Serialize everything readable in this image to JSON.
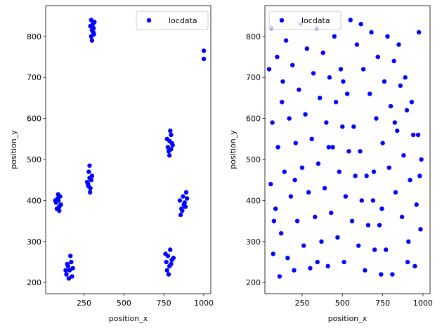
{
  "chart_data": [
    {
      "type": "scatter",
      "xlabel": "position_x",
      "ylabel": "position_y",
      "xlim": [
        10,
        1044
      ],
      "ylim": [
        173,
        875
      ],
      "xticks": [
        250,
        500,
        750,
        1000
      ],
      "yticks": [
        200,
        300,
        400,
        500,
        600,
        700,
        800
      ],
      "legend": "upper right",
      "series": [
        {
          "name": "locdata",
          "color": "#0000ff",
          "x": [
            295,
            300,
            305,
            310,
            290,
            315,
            300,
            308,
            295,
            312,
            75,
            85,
            95,
            100,
            80,
            90,
            105,
            70,
            95,
            88,
            140,
            150,
            160,
            170,
            155,
            180,
            145,
            165,
            175,
            135,
            275,
            285,
            290,
            280,
            295,
            270,
            285,
            300,
            288,
            278,
            775,
            785,
            795,
            780,
            800,
            790,
            770,
            805,
            785,
            795,
            765,
            775,
            785,
            790,
            770,
            800,
            780,
            810,
            760,
            795,
            850,
            860,
            870,
            880,
            890,
            855,
            875,
            895,
            865,
            885,
            1000,
            1000
          ],
          "y": [
            800,
            815,
            830,
            820,
            825,
            835,
            790,
            810,
            840,
            805,
            395,
            405,
            385,
            410,
            380,
            400,
            390,
            400,
            375,
            415,
            220,
            240,
            230,
            250,
            210,
            235,
            245,
            265,
            215,
            230,
            440,
            455,
            430,
            470,
            450,
            445,
            485,
            460,
            420,
            435,
            530,
            545,
            560,
            520,
            540,
            570,
            550,
            535,
            510,
            525,
            250,
            265,
            240,
            280,
            230,
            255,
            220,
            260,
            270,
            245,
            400,
            380,
            410,
            395,
            420,
            365,
            390,
            405,
            375,
            385,
            765,
            745
          ]
        }
      ]
    },
    {
      "type": "scatter",
      "xlabel": "position_x",
      "ylabel": "position_y",
      "xlim": [
        19,
        1044
      ],
      "ylim": [
        173,
        875
      ],
      "xticks": [
        250,
        500,
        750,
        1000
      ],
      "yticks": [
        200,
        300,
        400,
        500,
        600,
        700,
        800
      ],
      "legend": "upper left",
      "series": [
        {
          "name": "locdata",
          "color": "#0000ff",
          "x": [
            60,
            95,
            130,
            170,
            210,
            250,
            290,
            330,
            370,
            410,
            450,
            490,
            530,
            570,
            610,
            650,
            690,
            730,
            770,
            810,
            850,
            890,
            930,
            970,
            990,
            55,
            85,
            120,
            160,
            200,
            240,
            280,
            320,
            360,
            400,
            440,
            480,
            520,
            560,
            600,
            640,
            680,
            720,
            760,
            800,
            840,
            880,
            920,
            960,
            985,
            70,
            110,
            150,
            190,
            230,
            270,
            310,
            350,
            390,
            430,
            470,
            510,
            550,
            590,
            630,
            670,
            710,
            750,
            790,
            830,
            870,
            910,
            950,
            975,
            65,
            100,
            140,
            180,
            220,
            260,
            300,
            340,
            380,
            420,
            460,
            500,
            540,
            580,
            620,
            660,
            700,
            740,
            780,
            820,
            860,
            900,
            940,
            980,
            75,
            125,
            205,
            345,
            415,
            505,
            615,
            695,
            745,
            825,
            905,
            45
          ],
          "y": [
            820,
            750,
            690,
            600,
            540,
            480,
            420,
            360,
            300,
            240,
            800,
            720,
            660,
            580,
            520,
            460,
            400,
            340,
            280,
            220,
            780,
            700,
            640,
            560,
            500,
            440,
            380,
            320,
            260,
            230,
            830,
            770,
            710,
            650,
            590,
            530,
            470,
            410,
            350,
            290,
            230,
            810,
            750,
            690,
            630,
            570,
            510,
            450,
            390,
            330,
            270,
            215,
            790,
            730,
            670,
            610,
            550,
            490,
            430,
            370,
            310,
            250,
            840,
            780,
            720,
            660,
            600,
            540,
            480,
            420,
            360,
            300,
            240,
            810,
            590,
            530,
            470,
            410,
            350,
            290,
            235,
            820,
            760,
            700,
            640,
            580,
            520,
            460,
            400,
            340,
            280,
            220,
            800,
            740,
            680,
            620,
            560,
            460,
            350,
            640,
            450,
            250,
            530,
            690,
            830,
            470,
            380,
            590,
            250,
            720
          ]
        }
      ]
    }
  ]
}
